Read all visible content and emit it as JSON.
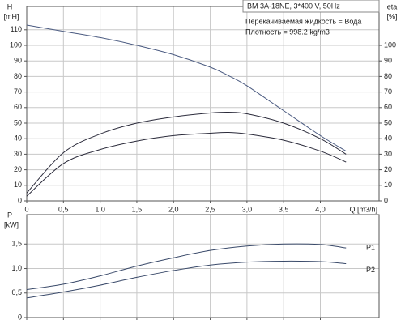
{
  "chart_data": [
    {
      "type": "line",
      "title": "BM 3A-18NE, 3*400 V, 50Hz",
      "annotations": [
        "Перекачиваемая жидкость = Вода",
        "Плотность = 998.2 kg/m3"
      ],
      "xlabel": "Q [m3/h]",
      "ylabel": "H",
      "ylabel_unit": "[mH]",
      "y2label": "eta",
      "y2label_unit": "[%]",
      "xlim": [
        0,
        4.8
      ],
      "xticks": [
        0,
        {
          "value": 0.5,
          "label": "0,5"
        },
        {
          "value": 1,
          "label": "1,0"
        },
        {
          "value": 1.5,
          "label": "1,5"
        },
        {
          "value": 2,
          "label": "2,0"
        },
        {
          "value": 2.5,
          "label": "2,5"
        },
        {
          "value": 3,
          "label": "3,0"
        },
        {
          "value": 3.5,
          "label": "3,5"
        },
        {
          "value": 4,
          "label": "4,0"
        }
      ],
      "ylim": [
        0,
        125
      ],
      "yticks": [
        0,
        10,
        20,
        30,
        40,
        50,
        60,
        70,
        80,
        90,
        100,
        110
      ],
      "y2lim": [
        0,
        125
      ],
      "y2ticks": [
        0,
        10,
        20,
        30,
        40,
        50,
        60,
        70,
        80,
        90,
        100
      ],
      "grid": true,
      "x": [
        0,
        0.5,
        1,
        1.5,
        2,
        2.5,
        2.75,
        3,
        3.5,
        4,
        4.35
      ],
      "series": [
        {
          "color": "#4a5a80",
          "values": [
            113,
            109,
            105,
            100,
            94,
            86,
            80.5,
            74,
            58,
            42,
            32
          ]
        },
        {
          "color": "#2b2b3b",
          "axis": "y2",
          "values": [
            5,
            31,
            43,
            50,
            54,
            56.5,
            57,
            56,
            50,
            40,
            30
          ]
        },
        {
          "color": "#2b2b3b",
          "axis": "y2",
          "values": [
            3,
            24,
            33,
            38.5,
            42,
            43.5,
            44,
            43,
            39,
            32,
            25
          ]
        }
      ]
    },
    {
      "type": "line",
      "ylabel": "P",
      "ylabel_unit": "[kW]",
      "xlim": [
        0,
        4.8
      ],
      "xticks": [
        0,
        0.5,
        1,
        1.5,
        2,
        2.5,
        3,
        3.5,
        4
      ],
      "ylim": [
        0,
        2.1
      ],
      "yticks": [
        0,
        {
          "value": 0.5,
          "label": "0,5"
        },
        {
          "value": 1,
          "label": "1,0"
        },
        {
          "value": 1.5,
          "label": "1,5"
        }
      ],
      "grid": true,
      "x": [
        0,
        0.5,
        1,
        1.5,
        2,
        2.5,
        3,
        3.5,
        4,
        4.35
      ],
      "series": [
        {
          "name": "P1",
          "color": "#3a4a6a",
          "values": [
            0.57,
            0.68,
            0.85,
            1.05,
            1.22,
            1.37,
            1.46,
            1.5,
            1.49,
            1.42
          ]
        },
        {
          "name": "P2",
          "color": "#3a4a6a",
          "values": [
            0.4,
            0.52,
            0.66,
            0.82,
            0.96,
            1.07,
            1.13,
            1.15,
            1.14,
            1.1
          ]
        }
      ]
    }
  ]
}
